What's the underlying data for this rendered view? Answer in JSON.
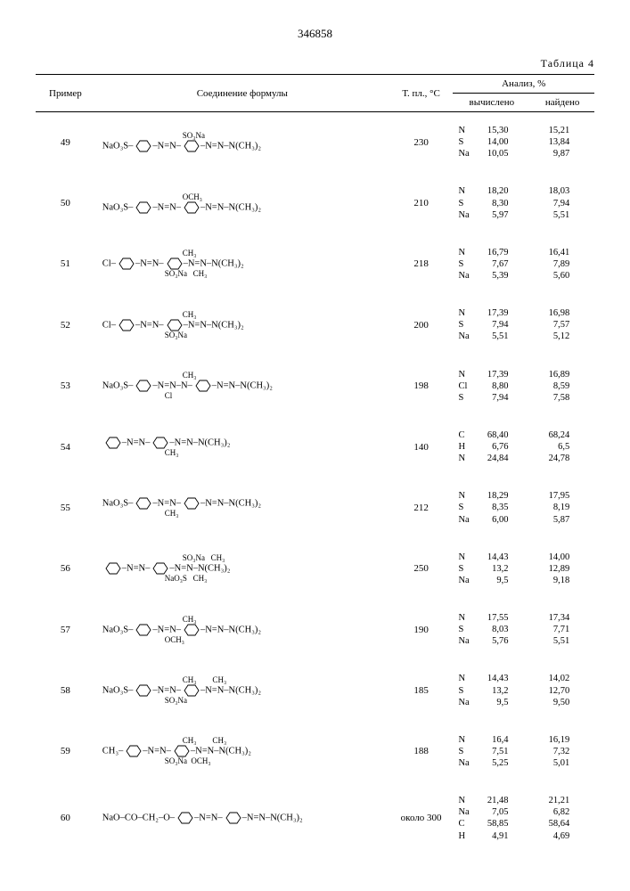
{
  "doc_number": "346858",
  "table_label": "Таблица 4",
  "header": {
    "example": "Пример",
    "formula": "Соединение формулы",
    "mp": "Т. пл., °С",
    "analysis": "Анализ, %",
    "calc": "вычислено",
    "found": "найдено"
  },
  "rows": [
    {
      "ex": "49",
      "mp": "230",
      "formula_tex": "NaO₃S–◯–N=N–◯(SO₃Na)–N=N–N(CH₃)₂",
      "formula_sub_top": "SO₃Na",
      "formula_main": "NaO₃S–⬡–N=N–⬡–N=N–N(CH₃)₂",
      "calc": [
        [
          "N",
          "15,30"
        ],
        [
          "S",
          "14,00"
        ],
        [
          "Na",
          "10,05"
        ]
      ],
      "found": [
        "15,21",
        "13,84",
        "9,87"
      ]
    },
    {
      "ex": "50",
      "mp": "210",
      "formula_sub_top": "OCH₃",
      "formula_main": "NaO₃S–⬡–N=N–⬡–N=N–N(CH₃)₂",
      "calc": [
        [
          "N",
          "18,20"
        ],
        [
          "S",
          "8,30"
        ],
        [
          "Na",
          "5,97"
        ]
      ],
      "found": [
        "18,03",
        "7,94",
        "5,51"
      ]
    },
    {
      "ex": "51",
      "mp": "218",
      "formula_sub_top": "CH₃",
      "formula_sub_bot": "SO₃Na   CH₃",
      "formula_main": "Cl–⬡–N=N–⬡–N=N–N(CH₃)₂",
      "calc": [
        [
          "N",
          "16,79"
        ],
        [
          "S",
          "7,67"
        ],
        [
          "Na",
          "5,39"
        ]
      ],
      "found": [
        "16,41",
        "7,89",
        "5,60"
      ]
    },
    {
      "ex": "52",
      "mp": "200",
      "formula_sub_top": "CH₃",
      "formula_sub_bot": "SO₃Na",
      "formula_main": "Cl–⬡–N=N–⬡–N=N–N(CH₃)₂",
      "calc": [
        [
          "N",
          "17,39"
        ],
        [
          "S",
          "7,94"
        ],
        [
          "Na",
          "5,51"
        ]
      ],
      "found": [
        "16,98",
        "7,57",
        "5,12"
      ]
    },
    {
      "ex": "53",
      "mp": "198",
      "formula_sub_top": "CH₃",
      "formula_sub_bot": "Cl",
      "formula_main": "NaO₃S–⬡–N=N–N–⬡–N=N–N(CH₃)₂",
      "calc": [
        [
          "N",
          "17,39"
        ],
        [
          "Cl",
          "8,80"
        ],
        [
          "S",
          "7,94"
        ]
      ],
      "found": [
        "16,89",
        "8,59",
        "7,58"
      ]
    },
    {
      "ex": "54",
      "mp": "140",
      "formula_sub_bot": "CH₃",
      "formula_main": "⬡–N=N–⬡–N=N–N(CH₃)₂",
      "calc": [
        [
          "C",
          "68,40"
        ],
        [
          "H",
          "6,76"
        ],
        [
          "N",
          "24,84"
        ]
      ],
      "found": [
        "68,24",
        "6,5",
        "24,78"
      ]
    },
    {
      "ex": "55",
      "mp": "212",
      "formula_sub_bot": "CH₃",
      "formula_main": "NaO₃S–⬡–N=N–⬡–N=N–N(CH₃)₂",
      "calc": [
        [
          "N",
          "18,29"
        ],
        [
          "S",
          "8,35"
        ],
        [
          "Na",
          "6,00"
        ]
      ],
      "found": [
        "17,95",
        "8,19",
        "5,87"
      ]
    },
    {
      "ex": "56",
      "mp": "250",
      "formula_sub_top": "SO₃Na   CH₃",
      "formula_sub_bot": "NaO₃S   CH₃",
      "formula_main": "⬡–N=N–⬡–N=N–N(CH₃)₂",
      "calc": [
        [
          "N",
          "14,43"
        ],
        [
          "S",
          "13,2"
        ],
        [
          "Na",
          "9,5"
        ]
      ],
      "found": [
        "14,00",
        "12,89",
        "9,18"
      ]
    },
    {
      "ex": "57",
      "mp": "190",
      "formula_sub_top": "CH₃",
      "formula_sub_bot": "OCH₃",
      "formula_main": "NaO₃S–⬡–N=N–⬡–N=N–N(CH₃)₂",
      "calc": [
        [
          "N",
          "17,55"
        ],
        [
          "S",
          "8,03"
        ],
        [
          "Na",
          "5,76"
        ]
      ],
      "found": [
        "17,34",
        "7,71",
        "5,51"
      ]
    },
    {
      "ex": "58",
      "mp": "185",
      "formula_sub_top": "CH₃        CH₃",
      "formula_sub_bot": "SO₃Na",
      "formula_main": "NaO₃S–⬡–N=N–⬡–N=N–N(CH₃)₂",
      "calc": [
        [
          "N",
          "14,43"
        ],
        [
          "S",
          "13,2"
        ],
        [
          "Na",
          "9,5"
        ]
      ],
      "found": [
        "14,02",
        "12,70",
        "9,50"
      ]
    },
    {
      "ex": "59",
      "mp": "188",
      "formula_sub_top": "CH₃        CH₃",
      "formula_sub_bot": "SO₃Na  OCH₃",
      "formula_main": "CH₃–⬡–N=N–⬡–N=N–N(CH₃)₂",
      "calc": [
        [
          "N",
          "16,4"
        ],
        [
          "S",
          "7,51"
        ],
        [
          "Na",
          "5,25"
        ]
      ],
      "found": [
        "16,19",
        "7,32",
        "5,01"
      ]
    },
    {
      "ex": "60",
      "mp": "около 300",
      "formula_main": "NaO–CO–CH₂–O–⬡–N=N–⬡–N=N–N(CH₃)₂",
      "calc": [
        [
          "N",
          "21,48"
        ],
        [
          "Na",
          "7,05"
        ],
        [
          "C",
          "58,85"
        ],
        [
          "H",
          "4,91"
        ]
      ],
      "found": [
        "21,21",
        "6,82",
        "58,64",
        "4,69"
      ]
    }
  ]
}
